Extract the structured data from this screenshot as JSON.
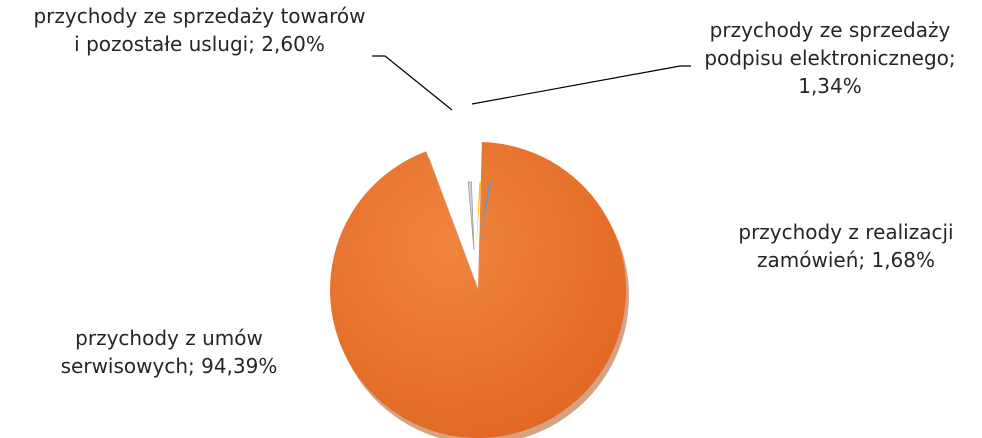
{
  "chart_data": {
    "type": "pie",
    "title": "",
    "slices": [
      {
        "label": "przychody z umów serwisowych; 94,39%",
        "lines": [
          "przychody z umów",
          "serwisowych; 94,39%"
        ],
        "value": 94.39,
        "color": "#E8712E"
      },
      {
        "label": "przychody ze sprzedaży towarów i pozostałe usługi; 2,60%",
        "lines": [
          "przychody ze sprzedaży towarów",
          "i pozostałe uslugi; 2,60%"
        ],
        "value": 2.6,
        "color": "#D7D7D7"
      },
      {
        "label": "przychody ze sprzedaży podpisu elektronicznego; 1,34%",
        "lines": [
          "przychody ze sprzedaży",
          "podpisu elektronicznego;",
          "1,34%"
        ],
        "value": 1.34,
        "color": "#FFC000"
      },
      {
        "label": "przychody z realizacji zamówień; 1,68%",
        "lines": [
          "przychody z realizacji",
          "zamówień; 1,68%"
        ],
        "value": 1.68,
        "color": "#5B9BD5"
      }
    ],
    "legend": "none",
    "data_labels": "outside with leader lines"
  }
}
